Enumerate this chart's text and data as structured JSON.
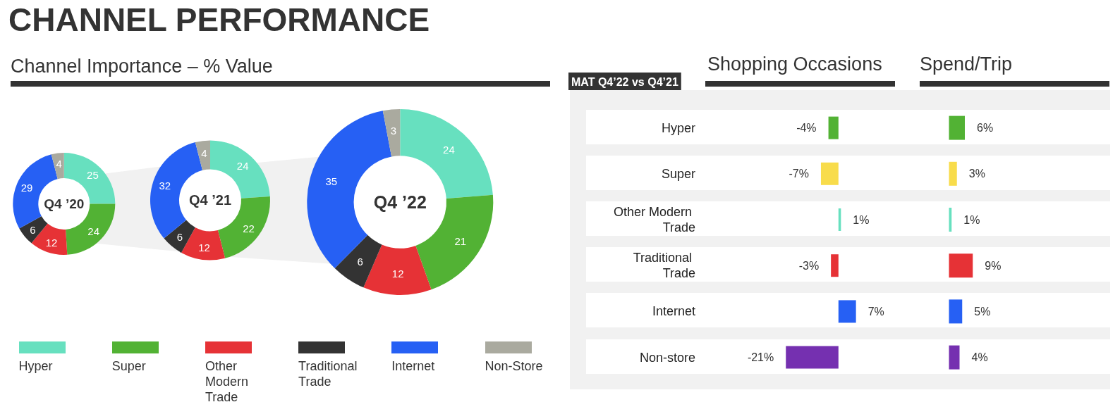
{
  "chart_data": [
    {
      "type": "donut",
      "title": "CHANNEL PERFORMANCE",
      "subtitle": "Channel Importance – % Value",
      "categories": [
        "Hyper",
        "Super",
        "Other Modern Trade",
        "Traditional Trade",
        "Internet",
        "Non-Store"
      ],
      "colors": [
        "#67e0bf",
        "#52b234",
        "#e63236",
        "#333333",
        "#2660f4",
        "#aaaa9f"
      ],
      "series": [
        {
          "name": "Q4 ’20",
          "values": [
            25,
            24,
            12,
            6,
            29,
            4
          ]
        },
        {
          "name": "Q4 ’21",
          "values": [
            24,
            22,
            12,
            6,
            32,
            4
          ]
        },
        {
          "name": "Q4 ’22",
          "values": [
            24,
            21,
            12,
            6,
            35,
            3
          ]
        }
      ],
      "data_labels": true,
      "legend": "bottom"
    },
    {
      "type": "bar",
      "orientation": "horizontal",
      "title": "Shopping Occasions",
      "annotations": [
        "MAT Q4’22 vs Q4’21"
      ],
      "categories": [
        "Hyper",
        "Super",
        "Other Modern Trade",
        "Traditional Trade",
        "Internet",
        "Non-store"
      ],
      "values": [
        -4,
        -7,
        1,
        -3,
        7,
        -21
      ],
      "colors": [
        "#52b234",
        "#f8dc4b",
        "#67e0bf",
        "#e63236",
        "#2660f4",
        "#7530b0"
      ],
      "value_labels": [
        "-4%",
        "-7%",
        "1%",
        "-3%",
        "7%",
        "-21%"
      ],
      "tick_labels": "y"
    },
    {
      "type": "bar",
      "orientation": "horizontal",
      "title": "Spend/Trip",
      "categories": [
        "Hyper",
        "Super",
        "Other Modern Trade",
        "Traditional Trade",
        "Internet",
        "Non-store"
      ],
      "values": [
        6,
        3,
        1,
        9,
        5,
        4
      ],
      "colors": [
        "#52b234",
        "#f8dc4b",
        "#67e0bf",
        "#e63236",
        "#2660f4",
        "#7530b0"
      ],
      "value_labels": [
        "6%",
        "3%",
        "1%",
        "9%",
        "5%",
        "4%"
      ],
      "tick_labels": false
    }
  ]
}
